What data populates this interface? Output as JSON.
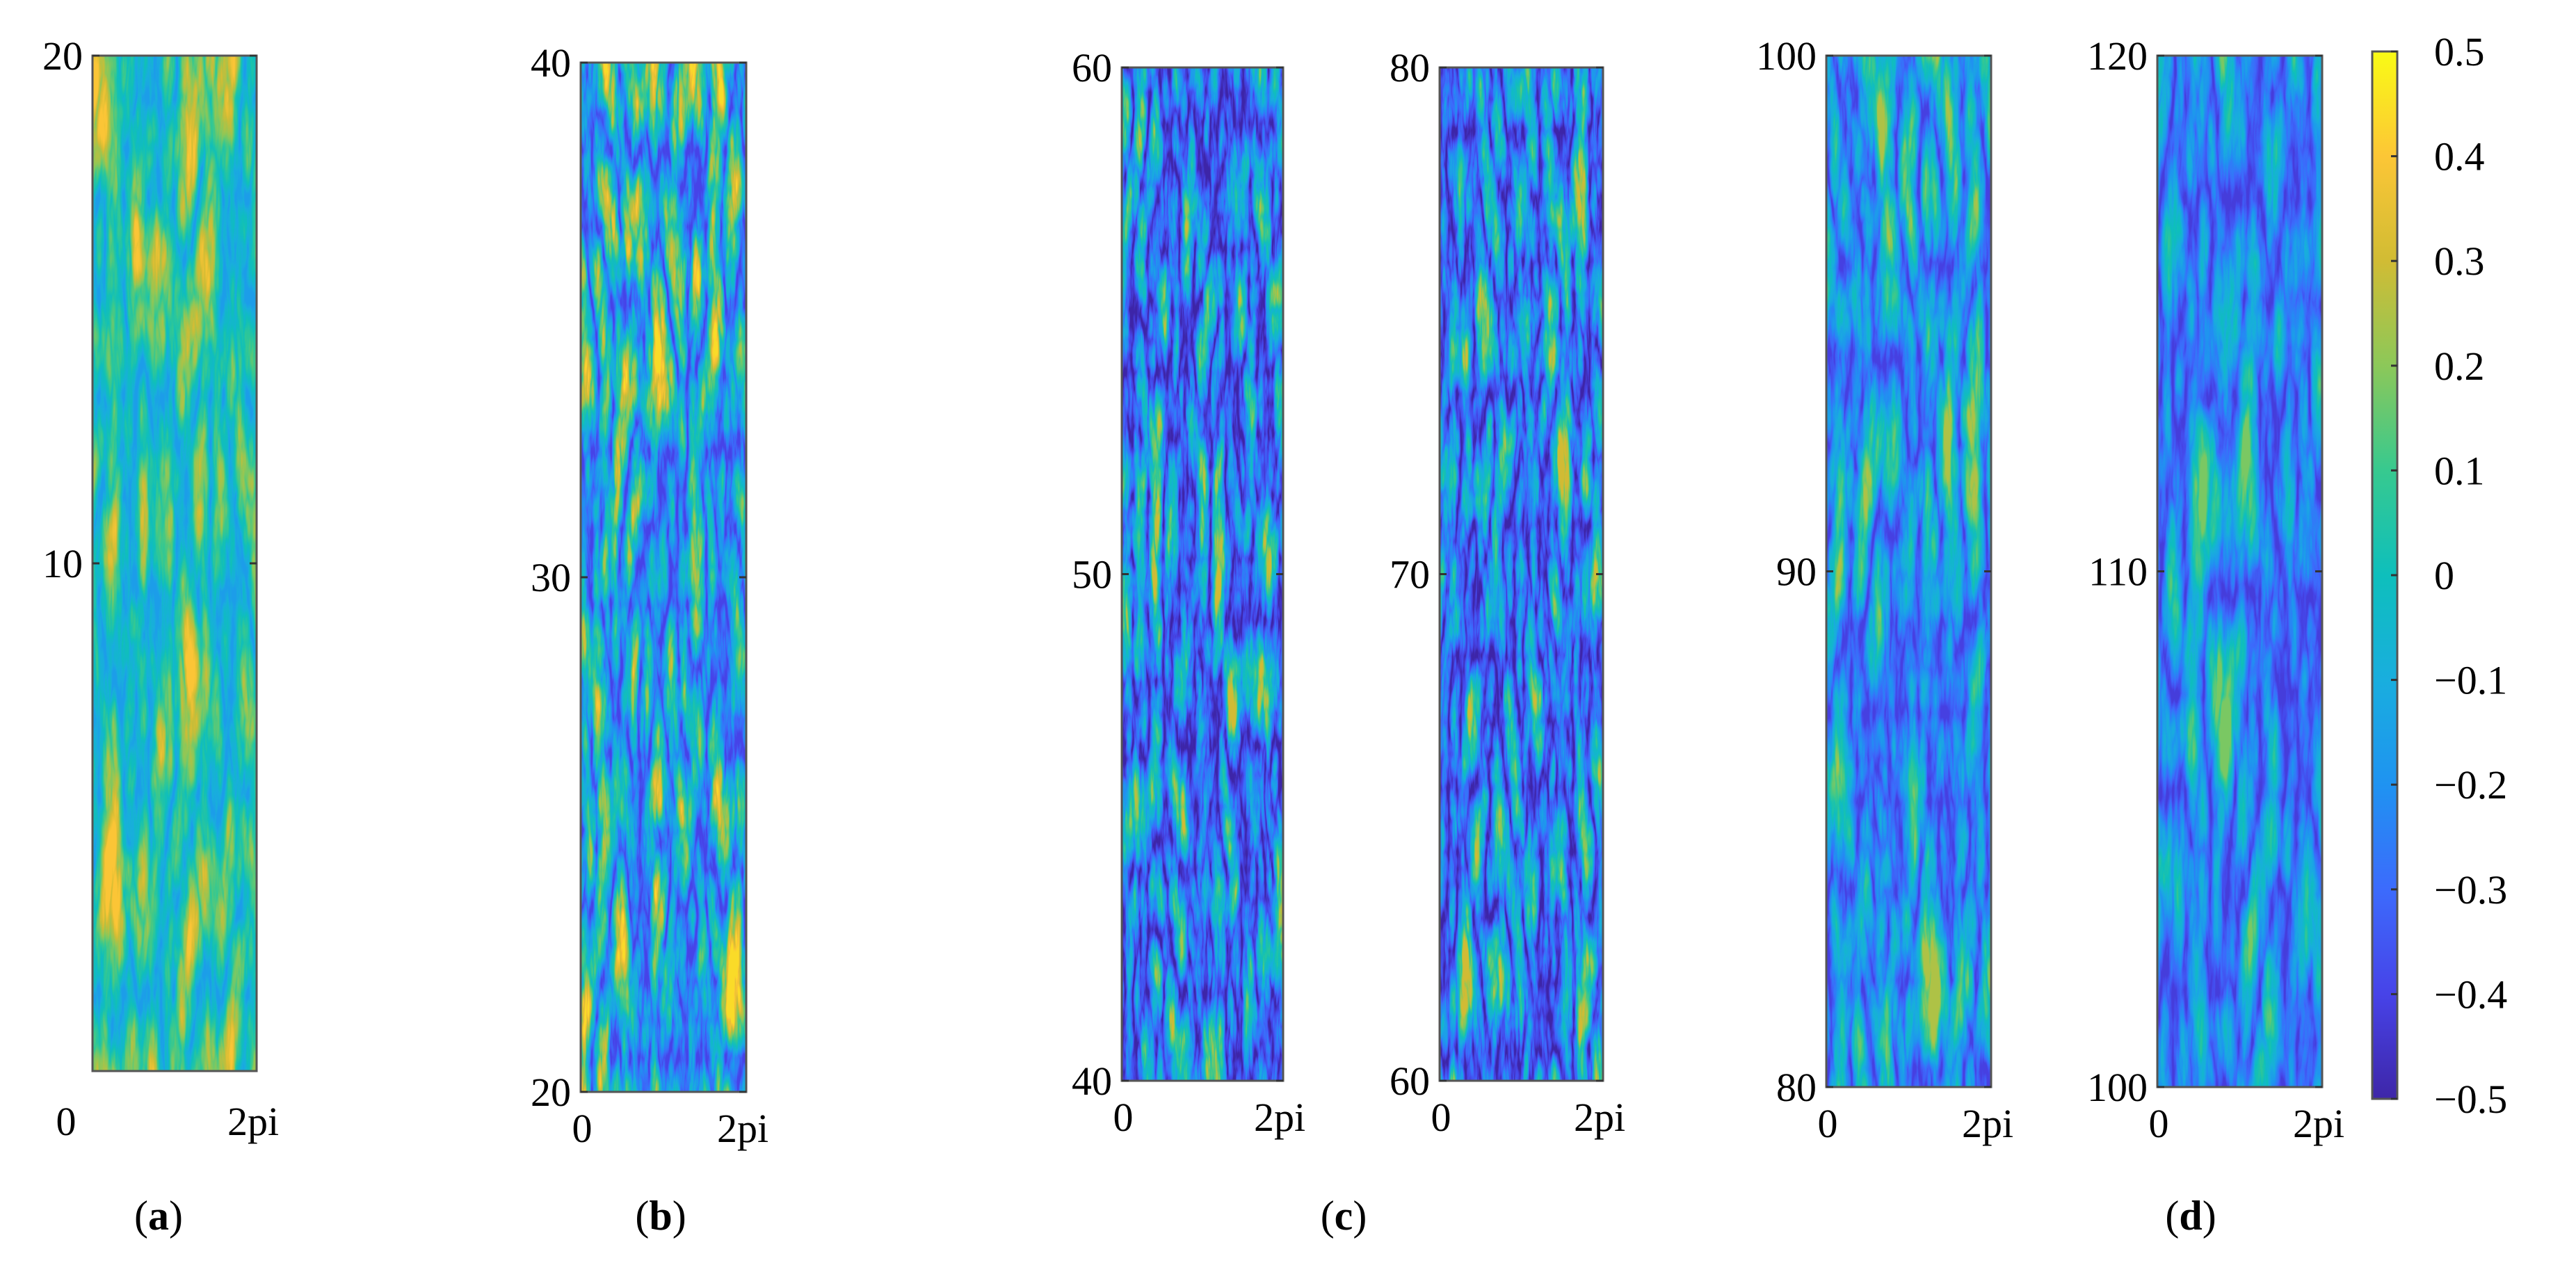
{
  "chart_data": {
    "type": "heatmap",
    "colormap": "parula",
    "colorbar": {
      "min": -0.5,
      "max": 0.5,
      "tick_values": [
        0.5,
        0.4,
        0.3,
        0.2,
        0.1,
        0,
        -0.1,
        -0.2,
        -0.3,
        -0.4,
        -0.5
      ],
      "tick_labels": [
        "0.5",
        "0.4",
        "0.3",
        "0.2",
        "0.1",
        "0",
        "−0.1",
        "−0.2",
        "−0.3",
        "−0.4",
        "−0.5"
      ],
      "placement": "right"
    },
    "panels": [
      {
        "id": "a1",
        "x_ticks": [
          "0",
          "2pi"
        ],
        "y_range": [
          0,
          20
        ],
        "y_tick_values": [
          10,
          20
        ],
        "y_tick_labels": [
          "10",
          "20"
        ],
        "character": "mostly green-cyan, orange patches at top and bottom, thin blue streaks",
        "mean_level": 0.12,
        "spread": 0.28,
        "detail": 1.0
      },
      {
        "id": "b1",
        "x_ticks": [
          "0",
          "2pi"
        ],
        "y_range": [
          20,
          40
        ],
        "y_tick_values": [
          20,
          30,
          40
        ],
        "y_tick_labels": [
          "20",
          "30",
          "40"
        ],
        "character": "strong contrast, yellow and dark blue streaks",
        "mean_level": 0.02,
        "spread": 0.42,
        "detail": 1.3
      },
      {
        "id": "c1",
        "x_ticks": [
          "0",
          "2pi"
        ],
        "y_range": [
          40,
          60
        ],
        "y_tick_values": [
          40,
          50,
          60
        ],
        "y_tick_labels": [
          "40",
          "50",
          "60"
        ],
        "character": "fine blue structure with yellow streaks",
        "mean_level": -0.1,
        "spread": 0.4,
        "detail": 1.6
      },
      {
        "id": "c2",
        "x_ticks": [
          "0",
          "2pi"
        ],
        "y_range": [
          60,
          80
        ],
        "y_tick_values": [
          60,
          70,
          80
        ],
        "y_tick_labels": [
          "60",
          "70",
          "80"
        ],
        "character": "fine blue structure with yellow streaks",
        "mean_level": -0.1,
        "spread": 0.4,
        "detail": 1.5
      },
      {
        "id": "d1",
        "x_ticks": [
          "0",
          "2pi"
        ],
        "y_range": [
          80,
          100
        ],
        "y_tick_values": [
          80,
          90,
          100
        ],
        "y_tick_labels": [
          "80",
          "90",
          "100"
        ],
        "character": "cyan-blue background with elongated yellow streaks",
        "mean_level": -0.08,
        "spread": 0.33,
        "detail": 1.1
      },
      {
        "id": "d2",
        "x_ticks": [
          "0",
          "2pi"
        ],
        "y_range": [
          100,
          120
        ],
        "y_tick_values": [
          100,
          110,
          120
        ],
        "y_tick_labels": [
          "100",
          "110",
          "120"
        ],
        "character": "cyan-blue background with sparse yellow streaks",
        "mean_level": -0.12,
        "spread": 0.3,
        "detail": 1.0
      }
    ],
    "panel_letters": [
      {
        "label": "a"
      },
      {
        "label": "b"
      },
      {
        "label": "c"
      },
      {
        "label": "d"
      }
    ],
    "title": "",
    "xlabel": "",
    "ylabel": ""
  }
}
